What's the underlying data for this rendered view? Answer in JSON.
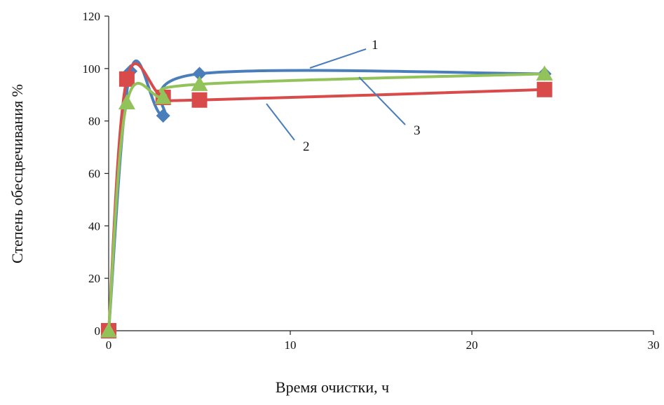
{
  "chart_data": {
    "type": "scatter",
    "xlabel": "Время очистки, ч",
    "ylabel": "Степень обесцвечивания %",
    "xlim": [
      0,
      30
    ],
    "ylim": [
      0,
      120
    ],
    "x_ticks": [
      0,
      10,
      20,
      30
    ],
    "y_ticks": [
      0,
      20,
      40,
      60,
      80,
      100,
      120
    ],
    "grid": false,
    "legend": "none (curves labeled with callout numbers)",
    "series": [
      {
        "id": "1",
        "color": "#4a7ebb",
        "marker": "diamond",
        "x": [
          0,
          1.2,
          3,
          5,
          24
        ],
        "y": [
          0,
          99,
          82,
          98,
          98
        ]
      },
      {
        "id": "2",
        "color": "#d94b4b",
        "marker": "square",
        "x": [
          0,
          1,
          3,
          5,
          24
        ],
        "y": [
          0,
          96,
          89,
          88,
          92
        ]
      },
      {
        "id": "3",
        "color": "#92c35a",
        "marker": "triangle",
        "x": [
          0,
          1,
          3,
          5,
          24
        ],
        "y": [
          0,
          87,
          89,
          94,
          98
        ]
      }
    ],
    "annotations": [
      {
        "text": "1",
        "series": "1"
      },
      {
        "text": "2",
        "series": "2"
      },
      {
        "text": "3",
        "series": "3"
      }
    ]
  }
}
